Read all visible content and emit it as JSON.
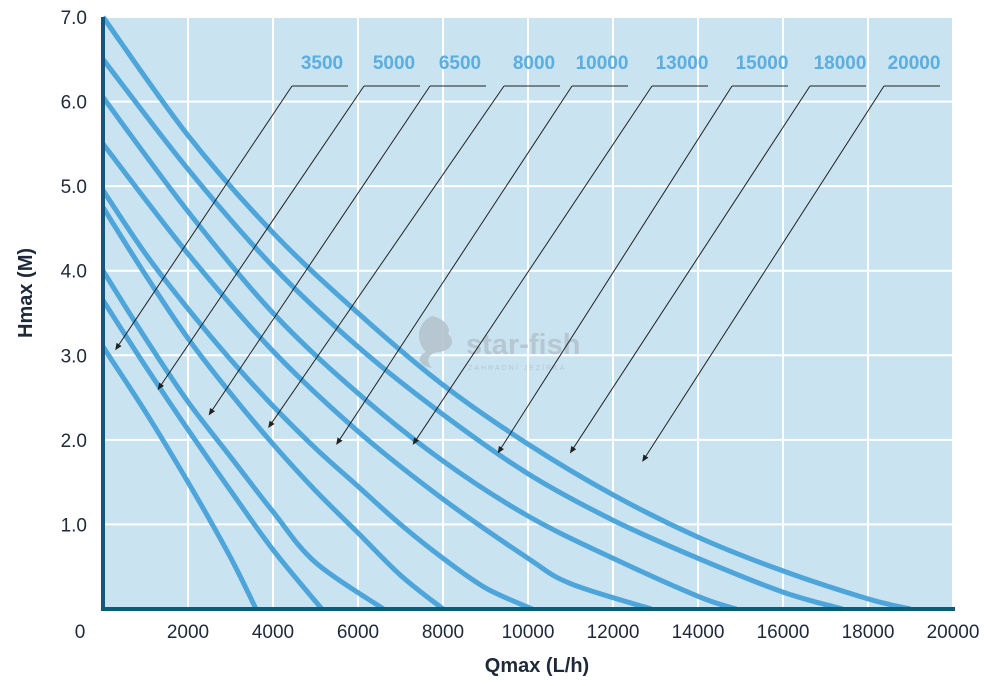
{
  "chart_data": {
    "type": "line",
    "title": "",
    "xlabel": "Qmax (L/h)",
    "ylabel": "Hmax (M)",
    "xlim": [
      0,
      20000
    ],
    "ylim": [
      0,
      7.0
    ],
    "x_ticks": [
      "0",
      "2000",
      "4000",
      "6000",
      "8000",
      "10000",
      "12000",
      "14000",
      "16000",
      "18000",
      "20000"
    ],
    "y_ticks": [
      "1.0",
      "2.0",
      "3.0",
      "4.0",
      "5.0",
      "6.0",
      "7.0"
    ],
    "grid": true,
    "background_color": "#c9e3f1",
    "curve_color": "#4ea5d9",
    "axis_color": "#0e5a78",
    "label_color": "#5aaee0",
    "series": [
      {
        "name": "3500",
        "points": [
          [
            0,
            3.1
          ],
          [
            1000,
            2.33
          ],
          [
            2000,
            1.5
          ],
          [
            3000,
            0.61
          ],
          [
            3600,
            0
          ]
        ]
      },
      {
        "name": "5000",
        "points": [
          [
            0,
            3.65
          ],
          [
            1000,
            2.87
          ],
          [
            2000,
            2.12
          ],
          [
            3000,
            1.4
          ],
          [
            4000,
            0.7
          ],
          [
            5150,
            0
          ]
        ]
      },
      {
        "name": "6500",
        "points": [
          [
            0,
            4.0
          ],
          [
            1000,
            3.2
          ],
          [
            2000,
            2.45
          ],
          [
            3000,
            1.8
          ],
          [
            4000,
            1.15
          ],
          [
            5000,
            0.55
          ],
          [
            6600,
            0
          ]
        ]
      },
      {
        "name": "8000",
        "points": [
          [
            0,
            4.75
          ],
          [
            1000,
            3.95
          ],
          [
            2000,
            3.2
          ],
          [
            3000,
            2.55
          ],
          [
            4000,
            1.95
          ],
          [
            5000,
            1.4
          ],
          [
            6000,
            0.9
          ],
          [
            7000,
            0.4
          ],
          [
            8000,
            0
          ]
        ]
      },
      {
        "name": "10000",
        "points": [
          [
            0,
            4.95
          ],
          [
            1000,
            4.2
          ],
          [
            2000,
            3.55
          ],
          [
            3000,
            2.95
          ],
          [
            4000,
            2.4
          ],
          [
            5000,
            1.9
          ],
          [
            6000,
            1.45
          ],
          [
            7000,
            1.0
          ],
          [
            8000,
            0.6
          ],
          [
            9000,
            0.25
          ],
          [
            10100,
            0
          ]
        ]
      },
      {
        "name": "13000",
        "points": [
          [
            0,
            5.5
          ],
          [
            2000,
            4.2
          ],
          [
            4000,
            3.05
          ],
          [
            6000,
            2.1
          ],
          [
            8000,
            1.3
          ],
          [
            10000,
            0.6
          ],
          [
            11000,
            0.3
          ],
          [
            12900,
            0
          ]
        ]
      },
      {
        "name": "15000",
        "points": [
          [
            0,
            6.05
          ],
          [
            2000,
            4.7
          ],
          [
            4000,
            3.5
          ],
          [
            6000,
            2.55
          ],
          [
            8000,
            1.75
          ],
          [
            10000,
            1.1
          ],
          [
            12000,
            0.6
          ],
          [
            14000,
            0.15
          ],
          [
            14900,
            0
          ]
        ]
      },
      {
        "name": "18000",
        "points": [
          [
            0,
            6.5
          ],
          [
            2000,
            5.2
          ],
          [
            4000,
            4.05
          ],
          [
            6000,
            3.1
          ],
          [
            8000,
            2.3
          ],
          [
            10000,
            1.6
          ],
          [
            12000,
            1.05
          ],
          [
            14000,
            0.6
          ],
          [
            16000,
            0.2
          ],
          [
            17400,
            0
          ]
        ]
      },
      {
        "name": "20000",
        "points": [
          [
            0,
            7.0
          ],
          [
            2000,
            5.6
          ],
          [
            4000,
            4.45
          ],
          [
            6000,
            3.5
          ],
          [
            8000,
            2.65
          ],
          [
            10000,
            1.95
          ],
          [
            12000,
            1.35
          ],
          [
            14000,
            0.85
          ],
          [
            16000,
            0.45
          ],
          [
            18000,
            0.12
          ],
          [
            19000,
            0
          ]
        ]
      }
    ],
    "annotations": [
      {
        "series": "3500",
        "target": [
          300,
          3.07
        ]
      },
      {
        "series": "5000",
        "target": [
          1300,
          2.6
        ]
      },
      {
        "series": "6500",
        "target": [
          2500,
          2.3
        ]
      },
      {
        "series": "8000",
        "target": [
          3900,
          2.15
        ]
      },
      {
        "series": "10000",
        "target": [
          5500,
          1.95
        ]
      },
      {
        "series": "13000",
        "target": [
          7300,
          1.95
        ]
      },
      {
        "series": "15000",
        "target": [
          9300,
          1.85
        ]
      },
      {
        "series": "18000",
        "target": [
          11000,
          1.85
        ]
      },
      {
        "series": "20000",
        "target": [
          12700,
          1.75
        ]
      }
    ]
  },
  "watermark": {
    "name": "star-fish",
    "tagline": "ZAHRADNÍ JEZÍRKA"
  }
}
